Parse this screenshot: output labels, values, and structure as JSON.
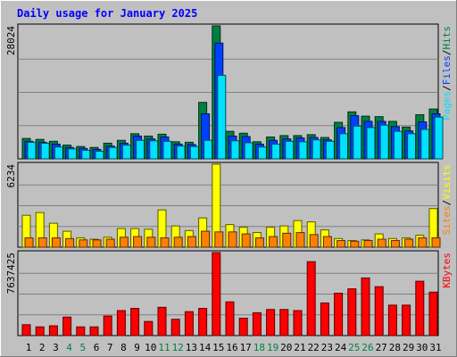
{
  "title": "Daily usage for January 2025",
  "colors": {
    "background": "#C0C0C0",
    "plot": "#C0C0C0",
    "title": "#0000FF",
    "grid": "#808080",
    "hits": "#008040",
    "files": "#0040FF",
    "pages": "#00E0FF",
    "visits": "#FFFF00",
    "sites": "#FF8000",
    "kbytes": "#FF0000",
    "weekend": "#008040",
    "weekday": "#000000"
  },
  "chart_data": [
    {
      "type": "bar",
      "categories": [
        "1",
        "2",
        "3",
        "4",
        "5",
        "6",
        "7",
        "8",
        "9",
        "10",
        "11",
        "12",
        "13",
        "14",
        "15",
        "16",
        "17",
        "18",
        "19",
        "20",
        "21",
        "22",
        "23",
        "24",
        "25",
        "26",
        "27",
        "28",
        "29",
        "30",
        "31"
      ],
      "weekend_days": [
        "4",
        "5",
        "11",
        "12",
        "18",
        "19",
        "25",
        "26"
      ],
      "ymax_label": "28024",
      "ylim": [
        0,
        28024
      ],
      "axis_label_parts": [
        {
          "text": "Pages",
          "key": "pages"
        },
        {
          "text": "/",
          "key": "weekday"
        },
        {
          "text": "Files",
          "key": "files"
        },
        {
          "text": "/",
          "key": "weekday"
        },
        {
          "text": "Hits",
          "key": "hits"
        }
      ],
      "series": [
        {
          "name": "Hits",
          "color": "#008040",
          "values": [
            4300,
            4100,
            3700,
            2900,
            2600,
            2400,
            3300,
            3900,
            5300,
            4800,
            5200,
            3600,
            3500,
            11900,
            28024,
            5800,
            5400,
            3600,
            4600,
            4900,
            4900,
            5100,
            4500,
            7700,
            9900,
            9000,
            8900,
            7900,
            6700,
            9300,
            10500
          ]
        },
        {
          "name": "Files",
          "color": "#0040FF",
          "values": [
            3700,
            3500,
            3100,
            2400,
            2200,
            2000,
            2700,
            3300,
            4800,
            4200,
            4600,
            3100,
            3000,
            9500,
            24400,
            4800,
            4700,
            3100,
            3900,
            4200,
            4400,
            4500,
            4000,
            6600,
            9100,
            7900,
            7900,
            6800,
            5900,
            7800,
            9500
          ]
        },
        {
          "name": "Pages",
          "color": "#00E0FF",
          "values": [
            3500,
            3300,
            2500,
            2100,
            1800,
            1600,
            2400,
            2900,
            3900,
            3800,
            3700,
            2700,
            2600,
            3900,
            17600,
            3800,
            3400,
            2500,
            3100,
            3700,
            3600,
            4000,
            3700,
            5300,
            6900,
            6600,
            7100,
            5800,
            5300,
            6200,
            8800
          ]
        }
      ]
    },
    {
      "type": "bar",
      "categories": [
        "1",
        "2",
        "3",
        "4",
        "5",
        "6",
        "7",
        "8",
        "9",
        "10",
        "11",
        "12",
        "13",
        "14",
        "15",
        "16",
        "17",
        "18",
        "19",
        "20",
        "21",
        "22",
        "23",
        "24",
        "25",
        "26",
        "27",
        "28",
        "29",
        "30",
        "31"
      ],
      "ymax_label": "6234",
      "ylim": [
        0,
        6234
      ],
      "axis_label_parts": [
        {
          "text": "Sites",
          "key": "sites"
        },
        {
          "text": "/",
          "key": "weekday"
        },
        {
          "text": "Visits",
          "key": "visits"
        }
      ],
      "series": [
        {
          "name": "Visits",
          "color": "#FFFF00",
          "values": [
            2400,
            2600,
            1800,
            1200,
            700,
            600,
            750,
            1400,
            1400,
            1350,
            2800,
            1600,
            1250,
            2200,
            6234,
            1700,
            1500,
            1100,
            1500,
            1600,
            2000,
            1900,
            1300,
            650,
            500,
            550,
            1000,
            650,
            700,
            900,
            2900
          ]
        },
        {
          "name": "Sites",
          "color": "#FF8000",
          "values": [
            700,
            700,
            700,
            650,
            550,
            550,
            600,
            750,
            800,
            750,
            700,
            750,
            800,
            1200,
            1150,
            1150,
            1000,
            700,
            800,
            1050,
            1100,
            950,
            800,
            500,
            450,
            500,
            600,
            500,
            600,
            700,
            700
          ]
        }
      ]
    },
    {
      "type": "bar",
      "categories": [
        "1",
        "2",
        "3",
        "4",
        "5",
        "6",
        "7",
        "8",
        "9",
        "10",
        "11",
        "12",
        "13",
        "14",
        "15",
        "16",
        "17",
        "18",
        "19",
        "20",
        "21",
        "22",
        "23",
        "24",
        "25",
        "26",
        "27",
        "28",
        "29",
        "30",
        "31"
      ],
      "ymax_label": "7637425",
      "ylim": [
        0,
        7637425
      ],
      "axis_label_parts": [
        {
          "text": "KBytes",
          "key": "kbytes"
        }
      ],
      "series": [
        {
          "name": "KBytes",
          "color": "#FF0000",
          "values": [
            1000000,
            800000,
            900000,
            1700000,
            800000,
            800000,
            1800000,
            2300000,
            2500000,
            1300000,
            2600000,
            1500000,
            2200000,
            2500000,
            7637425,
            3100000,
            1600000,
            2100000,
            2400000,
            2400000,
            2300000,
            6800000,
            3000000,
            3900000,
            4300000,
            5300000,
            4500000,
            2800000,
            2800000,
            5000000,
            4000000
          ]
        }
      ]
    }
  ]
}
